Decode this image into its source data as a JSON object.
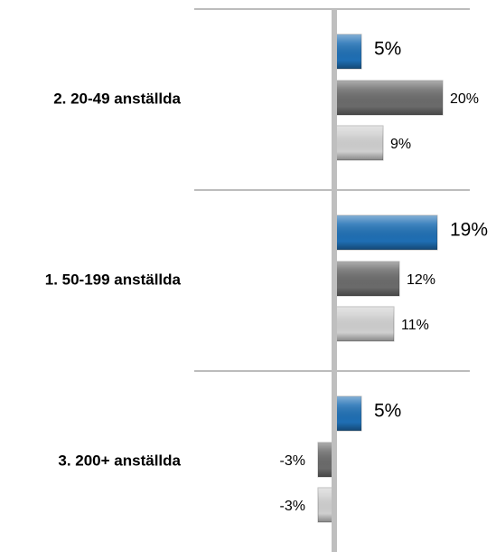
{
  "chart_data": {
    "type": "bar",
    "orientation": "horizontal",
    "categories": [
      "2. 20-49 anställda",
      "1. 50-199 anställda",
      "3. 200+ anställda"
    ],
    "series": [
      {
        "color": "#1f6fb4",
        "values": [
          5,
          19,
          5
        ],
        "value_labels": [
          "5%",
          "19%",
          "5%"
        ]
      },
      {
        "color": "#6b6b6b",
        "values": [
          20,
          12,
          -3
        ],
        "value_labels": [
          "20%",
          "12%",
          "-3%"
        ]
      },
      {
        "color": "#cfcfcf",
        "values": [
          9,
          11,
          -3
        ],
        "value_labels": [
          "9%",
          "11%",
          "-3%"
        ]
      }
    ],
    "xlim": [
      -10,
      25
    ]
  }
}
